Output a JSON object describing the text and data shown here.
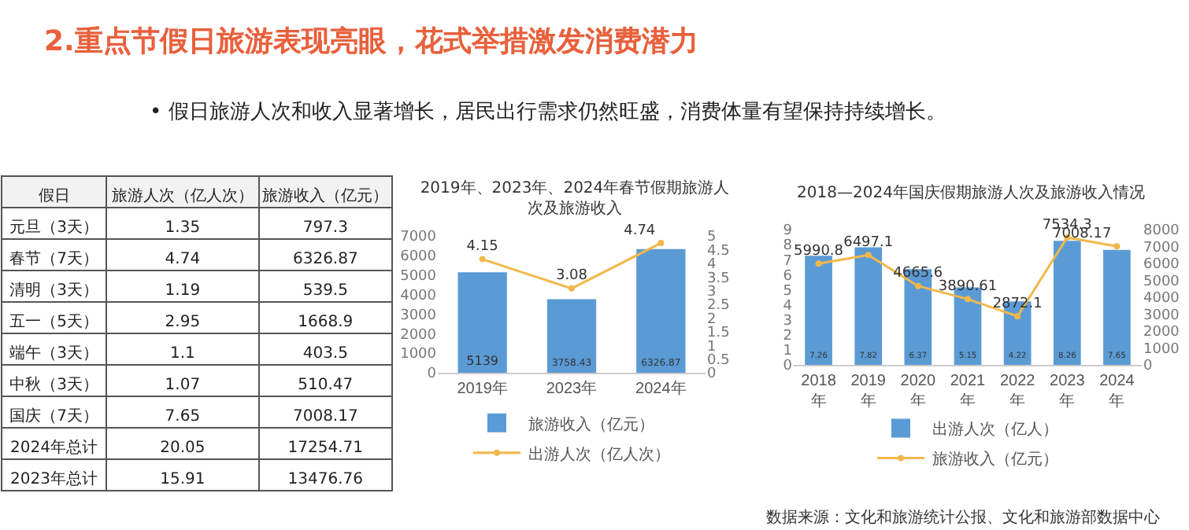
{
  "chart_data": [
    {
      "type": "other",
      "title": "2.重点节假日旅游表现亮眼，花式举措激发消费潜力",
      "subtitle": "• 假日旅游人次和收入显著增长，居民出行需求仍然旺盛，消费体量有望保持持续增长。",
      "ylabel": "假日",
      "categories": [
        "元旦（3天）",
        "春节（7天）",
        "清明（3天）",
        "五一（5天）",
        "端午（3天）",
        "中秋（3天）",
        "国庆（7天）",
        "2024年总计",
        "2023年总计"
      ],
      "series": [
        {
          "name": "旅游人次（亿人次）",
          "values": [
            1.35,
            4.74,
            1.19,
            2.95,
            1.1,
            1.07,
            7.65,
            20.05,
            15.91
          ]
        },
        {
          "name": "旅游收入（亿元）",
          "values": [
            797.3,
            6326.87,
            539.5,
            1668.9,
            403.5,
            510.47,
            7008.17,
            17254.71,
            13476.76
          ]
        }
      ],
      "data_labels": true
    },
    {
      "type": "bar",
      "title": "2019年、2023年、2024年春节假期旅游人次及旅游收入",
      "categories": [
        "2019年",
        "2023年",
        "2024年"
      ],
      "series": [
        {
          "name": "旅游收入（亿元）",
          "color": "#5b9bd5",
          "values": [
            5139,
            3758.43,
            6326.87
          ]
        },
        {
          "name": "出游人次（亿人次）",
          "type": "line",
          "axis": "y2",
          "color": "#f2b84b",
          "values": [
            4.15,
            3.08,
            4.74
          ]
        }
      ],
      "ylim": [
        0,
        7000
      ],
      "yticks": [
        0,
        1000,
        2000,
        3000,
        4000,
        5000,
        6000,
        7000
      ],
      "y2lim": [
        0,
        5
      ],
      "y2ticks": [
        0,
        0.5,
        1,
        1.5,
        2,
        2.5,
        3,
        3.5,
        4,
        4.5,
        5
      ],
      "data_labels": true,
      "legend": "bottom",
      "marker": "circle",
      "grid": false
    },
    {
      "type": "bar",
      "title": "2018—2024年国庆假期旅游人次及旅游收入情况",
      "categories": [
        "2018年",
        "2019年",
        "2020年",
        "2021年",
        "2022年",
        "2023年",
        "2024年"
      ],
      "series": [
        {
          "name": "出游人次（亿人）",
          "color": "#5b9bd5",
          "values": [
            7.26,
            7.82,
            6.37,
            5.15,
            4.22,
            8.26,
            7.65
          ]
        },
        {
          "name": "旅游收入（亿元）",
          "type": "line",
          "axis": "y2",
          "color": "#f2b84b",
          "values": [
            5990.8,
            6497.1,
            4665.6,
            3890.61,
            2872.1,
            7534.3,
            7008.17
          ]
        }
      ],
      "ylim": [
        0,
        9
      ],
      "yticks": [
        0,
        1,
        2,
        3,
        4,
        5,
        6,
        7,
        8,
        9
      ],
      "y2lim": [
        0,
        8000
      ],
      "y2ticks": [
        0,
        1000,
        2000,
        3000,
        4000,
        5000,
        6000,
        7000,
        8000
      ],
      "data_labels": true,
      "legend": "bottom",
      "marker": "circle",
      "grid": false,
      "annotations": [
        "数据来源：文化和旅游统计公报、文化和旅游部数据中心"
      ]
    }
  ]
}
